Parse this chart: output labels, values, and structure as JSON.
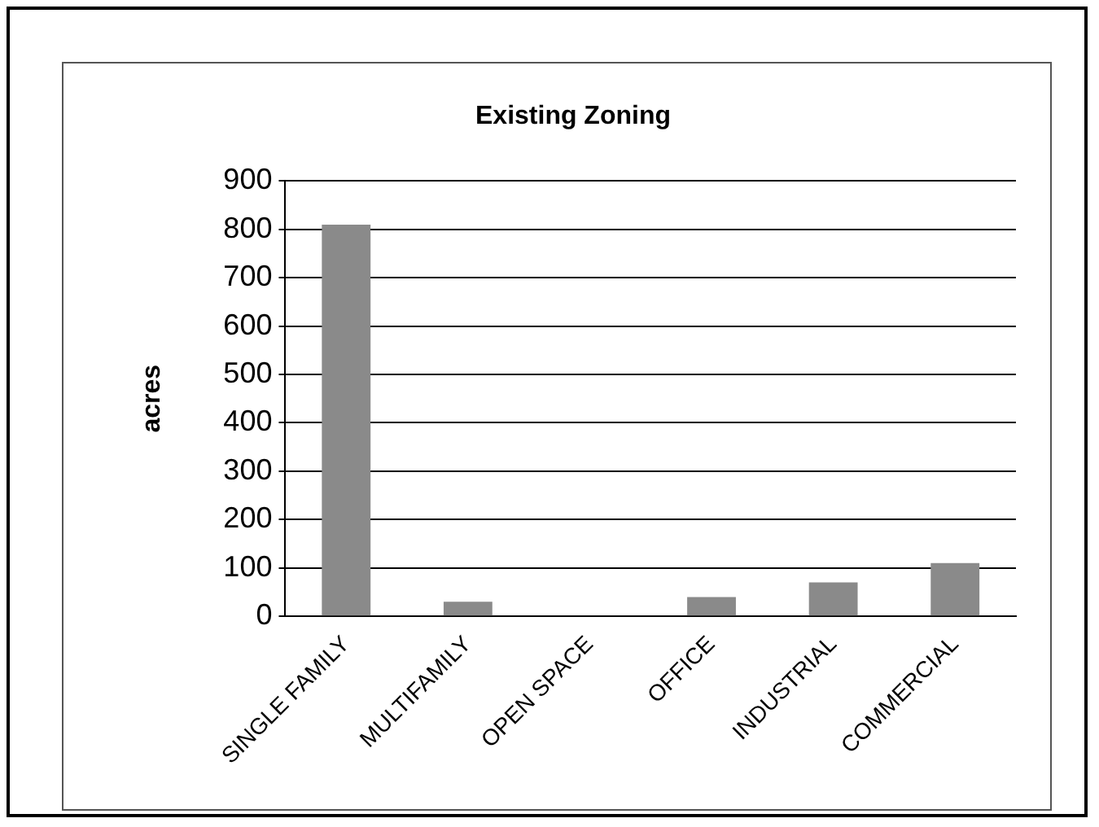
{
  "chart_data": {
    "type": "bar",
    "title": "Existing Zoning",
    "ylabel": "acres",
    "categories": [
      "SINGLE FAMILY",
      "MULTIFAMILY",
      "OPEN SPACE",
      "OFFICE",
      "INDUSTRIAL",
      "COMMERCIAL"
    ],
    "values": [
      810,
      30,
      0,
      40,
      70,
      110
    ],
    "color": "#8a8a8a",
    "ylim": [
      0,
      900
    ],
    "yticks": [
      0,
      100,
      200,
      300,
      400,
      500,
      600,
      700,
      800,
      900
    ],
    "grid": "y",
    "legend": false
  }
}
